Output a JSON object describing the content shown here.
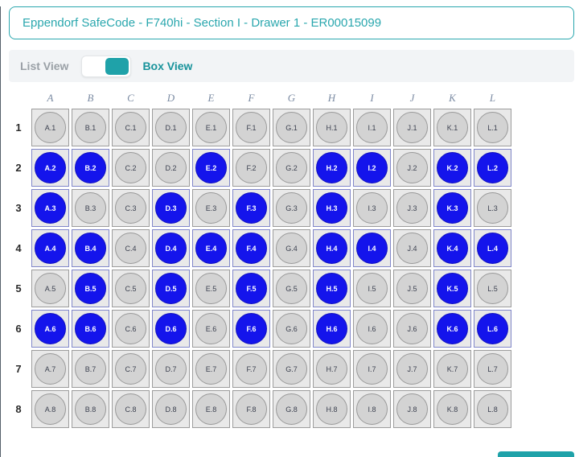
{
  "header": {
    "title": "Eppendorf SafeCode - F740hi - Section I - Drawer 1 - ER00015099"
  },
  "view_toggle": {
    "list_label": "List View",
    "box_label": "Box View",
    "active": "Box View"
  },
  "grid": {
    "columns": [
      "A",
      "B",
      "C",
      "D",
      "E",
      "F",
      "G",
      "H",
      "I",
      "J",
      "K",
      "L"
    ],
    "rows": [
      "1",
      "2",
      "3",
      "4",
      "5",
      "6",
      "7",
      "8"
    ],
    "selected_wells": [
      "A.2",
      "B.2",
      "E.2",
      "H.2",
      "I.2",
      "K.2",
      "L.2",
      "A.3",
      "D.3",
      "F.3",
      "H.3",
      "K.3",
      "A.4",
      "B.4",
      "D.4",
      "E.4",
      "F.4",
      "H.4",
      "I.4",
      "K.4",
      "L.4",
      "B.5",
      "D.5",
      "F.5",
      "H.5",
      "K.5",
      "A.6",
      "B.6",
      "D.6",
      "F.6",
      "H.6",
      "K.6",
      "L.6"
    ]
  },
  "colors": {
    "accent_teal": "#1fa2a9",
    "title_teal": "#2aa7ae",
    "selected_blue": "#1414ec",
    "empty_well_gray": "#d3d3d3"
  }
}
